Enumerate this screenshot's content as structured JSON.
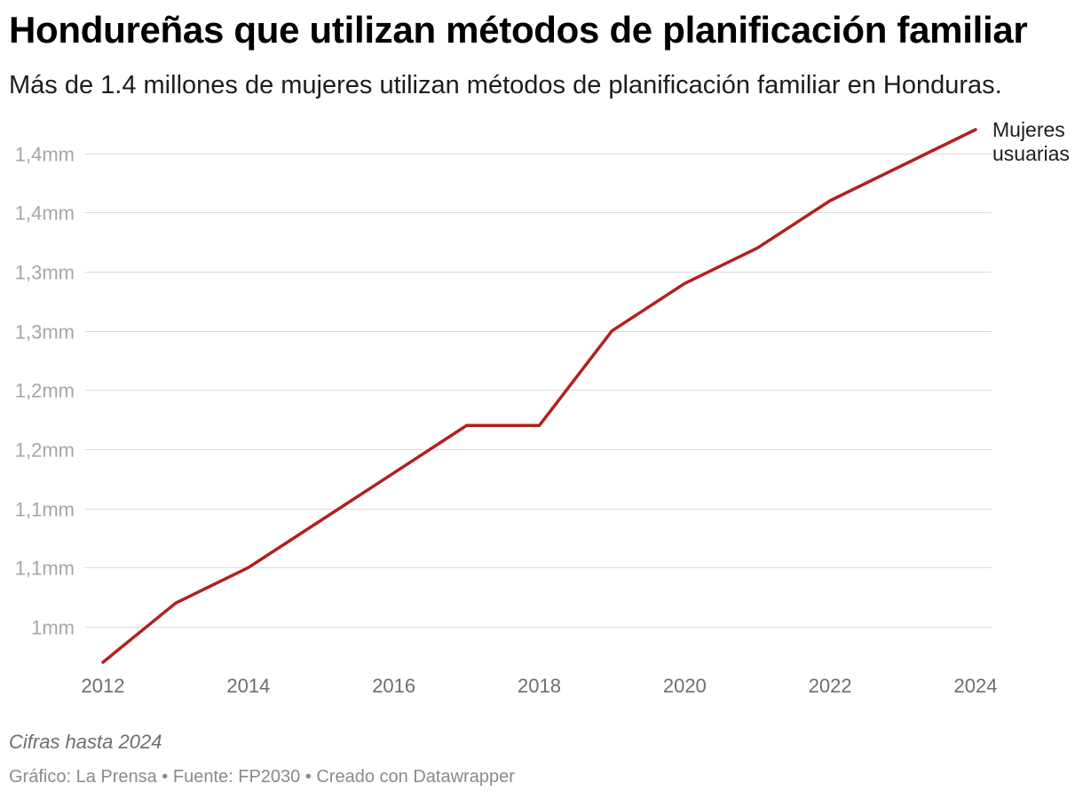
{
  "title": "Hondureñas que utilizan métodos de planificación familiar",
  "subtitle": "Más de 1.4 millones de mujeres utilizan métodos de planificación familiar en Honduras.",
  "note": "Cifras hasta 2024",
  "credits": "Gráfico: La Prensa • Fuente: FP2030 • Creado con Datawrapper",
  "chart_data": {
    "type": "line",
    "title": "Hondureñas que utilizan métodos de planificación familiar",
    "subtitle": "Más de 1.4 millones de mujeres utilizan métodos de planificación familiar en Honduras.",
    "x": [
      2012,
      2013,
      2014,
      2015,
      2016,
      2017,
      2018,
      2019,
      2020,
      2021,
      2022,
      2023,
      2024
    ],
    "series": [
      {
        "name": "Mujeres usuarias",
        "color": "#b1201f",
        "values": [
          970000,
          1020000,
          1050000,
          1090000,
          1130000,
          1170000,
          1170000,
          1250000,
          1290000,
          1320000,
          1360000,
          1390000,
          1420000
        ]
      }
    ],
    "series_label_lines": [
      "Mujeres",
      "usuarias"
    ],
    "xticks": [
      2012,
      2014,
      2016,
      2018,
      2020,
      2022,
      2024
    ],
    "yticks": [
      {
        "value": 1000000,
        "label": "1mm"
      },
      {
        "value": 1050000,
        "label": "1,1mm"
      },
      {
        "value": 1100000,
        "label": "1,1mm"
      },
      {
        "value": 1150000,
        "label": "1,2mm"
      },
      {
        "value": 1200000,
        "label": "1,2mm"
      },
      {
        "value": 1250000,
        "label": "1,3mm"
      },
      {
        "value": 1300000,
        "label": "1,3mm"
      },
      {
        "value": 1350000,
        "label": "1,4mm"
      },
      {
        "value": 1400000,
        "label": "1,4mm"
      }
    ],
    "xlim": [
      2012,
      2024
    ],
    "ylim": [
      970000,
      1420000
    ],
    "grid": true,
    "legend": "direct label at line end"
  }
}
